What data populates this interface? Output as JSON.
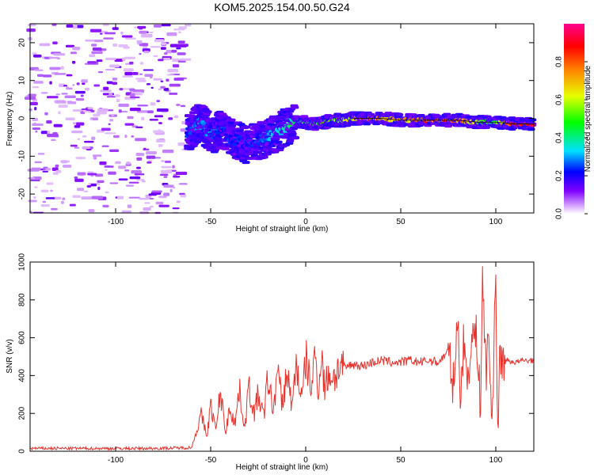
{
  "title": "KOM5.2025.154.00.50.G24",
  "chart_data": [
    {
      "type": "heatmap",
      "xlabel": "Height of straight line (km)",
      "ylabel": "Frequency (Hz)",
      "xlim": [
        -145,
        120
      ],
      "ylim": [
        -25,
        25
      ],
      "x_ticks": [
        "-100",
        "-50",
        "0",
        "50",
        "100"
      ],
      "y_ticks": [
        "-20",
        "-10",
        "0",
        "10",
        "20"
      ],
      "colorbar": {
        "label": "Normalized spectral amplitude",
        "range": [
          0,
          1
        ],
        "ticks": [
          "0.0",
          "0.2",
          "0.4",
          "0.6",
          "0.8"
        ]
      },
      "ridge": {
        "x": [
          -62,
          -58,
          -55,
          -52,
          -48,
          -45,
          -40,
          -35,
          -30,
          -25,
          -20,
          -15,
          -10,
          -5,
          0,
          5,
          10,
          15,
          20,
          25,
          30,
          40,
          50,
          60,
          70,
          80,
          90,
          100,
          110,
          120
        ],
        "y": [
          -4,
          -2,
          -1,
          -3,
          -4,
          -3,
          -5,
          -6,
          -7,
          -6,
          -5,
          -4,
          -2,
          -1,
          -1,
          -1.5,
          -1,
          -0.5,
          -0.5,
          0,
          0,
          0,
          -0.5,
          -0.5,
          -0.5,
          -0.5,
          -1,
          -1,
          -1.5,
          -1.5
        ],
        "amplitude": [
          0.25,
          0.3,
          0.3,
          0.3,
          0.3,
          0.25,
          0.25,
          0.25,
          0.25,
          0.25,
          0.3,
          0.35,
          0.4,
          0.45,
          0.5,
          0.5,
          0.55,
          0.6,
          0.6,
          0.7,
          0.85,
          0.7,
          0.75,
          0.8,
          0.9,
          0.85,
          0.6,
          0.5,
          0.95,
          0.95
        ]
      }
    },
    {
      "type": "line",
      "xlabel": "Height of straight line (km)",
      "ylabel": "SNR (v/v)",
      "xlim": [
        -145,
        120
      ],
      "ylim": [
        0,
        1000
      ],
      "x_ticks": [
        "-100",
        "-50",
        "0",
        "50",
        "100"
      ],
      "y_ticks": [
        "0",
        "200",
        "400",
        "600",
        "800",
        "1000"
      ],
      "color": "#e8332d",
      "series": [
        {
          "x": [
            -145,
            -120,
            -100,
            -80,
            -65,
            -60,
            -55,
            -52,
            -50,
            -47,
            -45,
            -42,
            -40,
            -37,
            -35,
            -32,
            -30,
            -27,
            -25,
            -22,
            -20,
            -17,
            -15,
            -12,
            -10,
            -7,
            -5,
            -2,
            0,
            3,
            5,
            7,
            8,
            10,
            12,
            15,
            18,
            20,
            25,
            30,
            35,
            40,
            45,
            50,
            55,
            60,
            65,
            70,
            75,
            78,
            80,
            81,
            83,
            85,
            88,
            90,
            92,
            93,
            95,
            96,
            98,
            100,
            101,
            102,
            104,
            106,
            110,
            115,
            120
          ],
          "y": [
            15,
            15,
            15,
            15,
            18,
            20,
            190,
            80,
            240,
            110,
            320,
            100,
            230,
            150,
            330,
            120,
            340,
            200,
            300,
            180,
            390,
            210,
            420,
            240,
            430,
            230,
            480,
            260,
            490,
            330,
            510,
            300,
            540,
            330,
            410,
            390,
            450,
            440,
            460,
            450,
            470,
            480,
            470,
            470,
            480,
            470,
            480,
            470,
            530,
            330,
            770,
            270,
            560,
            400,
            620,
            600,
            220,
            940,
            360,
            700,
            100,
            1000,
            30,
            500,
            470,
            480,
            470,
            480,
            480
          ]
        }
      ]
    }
  ]
}
